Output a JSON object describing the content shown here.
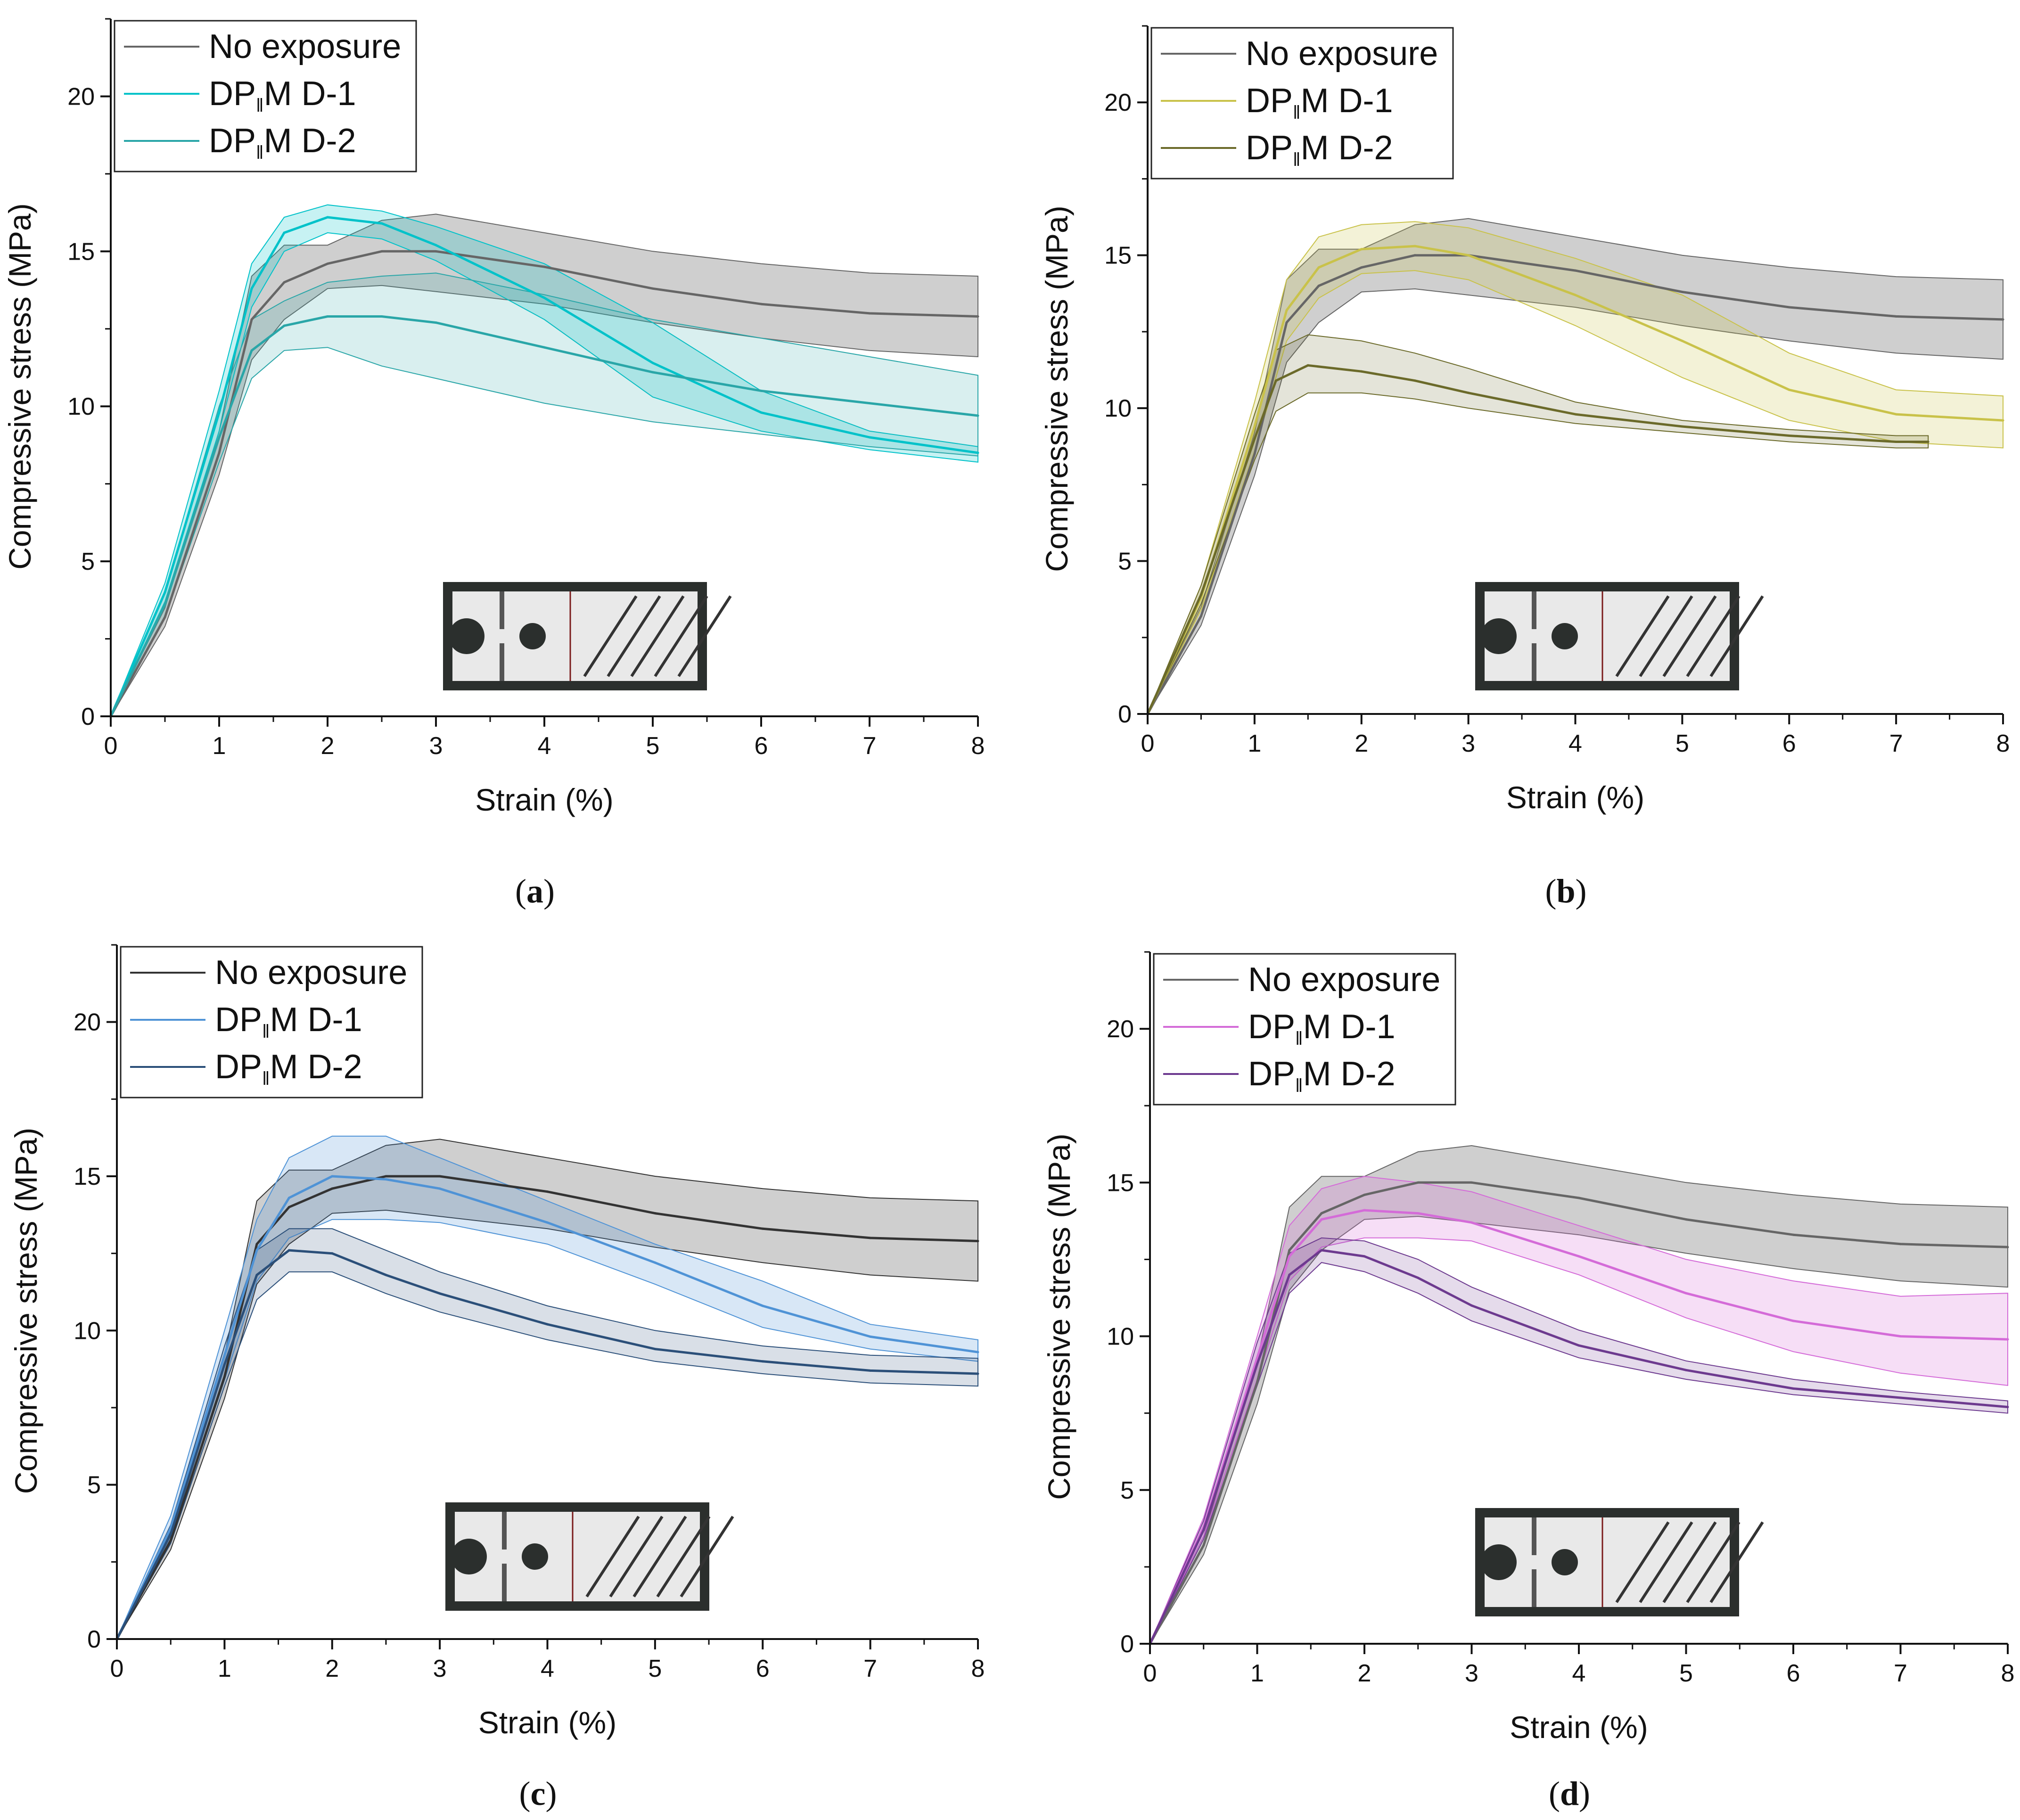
{
  "panels": [
    {
      "label": "a",
      "colors": [
        "#666666",
        "#00c2c9",
        "#2aa6a8"
      ]
    },
    {
      "label": "b",
      "colors": [
        "#666666",
        "#c9c24a",
        "#6b6a2a"
      ]
    },
    {
      "label": "c",
      "colors": [
        "#333333",
        "#4f93d6",
        "#2b4f79"
      ]
    },
    {
      "label": "d",
      "colors": [
        "#666666",
        "#d46bd8",
        "#6d3a8f"
      ]
    }
  ],
  "legend_parts": {
    "no_exposure": "No exposure",
    "dp": "DP",
    "sub": "‖",
    "m_d1": "M D-1",
    "m_d2": "M D-2"
  },
  "chart_data": [
    {
      "type": "line",
      "panel": "a",
      "xlabel": "Strain (%)",
      "ylabel": "Compressive stress (MPa)",
      "xlim": [
        0,
        8
      ],
      "ylim": [
        0,
        22.5
      ],
      "xticks": [
        0,
        1,
        2,
        3,
        4,
        5,
        6,
        7,
        8
      ],
      "yticks": [
        0,
        5,
        10,
        15,
        20
      ],
      "legend_position": "top-left",
      "series": [
        {
          "name": "No exposure",
          "x": [
            0,
            0.5,
            1.0,
            1.3,
            1.6,
            2.0,
            2.5,
            3.0,
            4.0,
            5.0,
            6.0,
            7.0,
            8.0
          ],
          "y": [
            0,
            3.2,
            8.5,
            12.8,
            14.0,
            14.6,
            15.0,
            15.0,
            14.5,
            13.8,
            13.3,
            13.0,
            12.9
          ],
          "band_upper": [
            0,
            3.5,
            9.2,
            14.2,
            15.2,
            15.2,
            16.0,
            16.2,
            15.6,
            15.0,
            14.6,
            14.3,
            14.2
          ],
          "band_lower": [
            0,
            2.9,
            7.8,
            11.5,
            12.8,
            13.8,
            13.9,
            13.7,
            13.3,
            12.7,
            12.2,
            11.8,
            11.6
          ]
        },
        {
          "name": "DP‖M D-1",
          "x": [
            0,
            0.5,
            1.0,
            1.3,
            1.6,
            2.0,
            2.5,
            3.0,
            4.0,
            5.0,
            6.0,
            7.0,
            8.0
          ],
          "y": [
            0,
            4.0,
            9.8,
            13.8,
            15.6,
            16.1,
            15.9,
            15.2,
            13.5,
            11.4,
            9.8,
            9.0,
            8.5
          ],
          "band_upper": [
            0,
            4.3,
            10.5,
            14.6,
            16.1,
            16.5,
            16.3,
            15.8,
            14.6,
            12.7,
            10.5,
            9.2,
            8.7
          ],
          "band_lower": [
            0,
            3.7,
            9.2,
            13.2,
            15.0,
            15.6,
            15.4,
            14.7,
            12.8,
            10.3,
            9.2,
            8.6,
            8.2
          ]
        },
        {
          "name": "DP‖M D-2",
          "x": [
            0,
            0.5,
            1.0,
            1.3,
            1.6,
            2.0,
            2.5,
            3.0,
            4.0,
            5.0,
            6.0,
            7.0,
            8.0
          ],
          "y": [
            0,
            3.6,
            9.0,
            11.8,
            12.6,
            12.9,
            12.9,
            12.7,
            11.9,
            11.1,
            10.5,
            10.1,
            9.7
          ],
          "band_upper": [
            0,
            4.0,
            10.0,
            12.8,
            13.4,
            14.0,
            14.2,
            14.3,
            13.6,
            12.8,
            12.2,
            11.6,
            11.0
          ],
          "band_lower": [
            0,
            3.2,
            8.2,
            10.9,
            11.8,
            11.9,
            11.3,
            10.9,
            10.1,
            9.5,
            9.1,
            8.7,
            8.4
          ]
        }
      ]
    },
    {
      "type": "line",
      "panel": "b",
      "xlabel": "Strain (%)",
      "ylabel": "Compressive stress (MPa)",
      "xlim": [
        0,
        8
      ],
      "ylim": [
        0,
        22.5
      ],
      "xticks": [
        0,
        1,
        2,
        3,
        4,
        5,
        6,
        7,
        8
      ],
      "yticks": [
        0,
        5,
        10,
        15,
        20
      ],
      "legend_position": "top-left",
      "series": [
        {
          "name": "No exposure",
          "x": [
            0,
            0.5,
            1.0,
            1.3,
            1.6,
            2.0,
            2.5,
            3.0,
            4.0,
            5.0,
            6.0,
            7.0,
            8.0
          ],
          "y": [
            0,
            3.2,
            8.5,
            12.8,
            14.0,
            14.6,
            15.0,
            15.0,
            14.5,
            13.8,
            13.3,
            13.0,
            12.9
          ],
          "band_upper": [
            0,
            3.5,
            9.2,
            14.2,
            15.2,
            15.2,
            16.0,
            16.2,
            15.6,
            15.0,
            14.6,
            14.3,
            14.2
          ],
          "band_lower": [
            0,
            2.9,
            7.8,
            11.5,
            12.8,
            13.8,
            13.9,
            13.7,
            13.3,
            12.7,
            12.2,
            11.8,
            11.6
          ]
        },
        {
          "name": "DP‖M D-1",
          "x": [
            0,
            0.5,
            1.0,
            1.3,
            1.6,
            2.0,
            2.5,
            3.0,
            4.0,
            5.0,
            6.0,
            7.0,
            8.0
          ],
          "y": [
            0,
            3.8,
            9.4,
            13.2,
            14.6,
            15.2,
            15.3,
            15.0,
            13.7,
            12.2,
            10.6,
            9.8,
            9.6
          ],
          "band_upper": [
            0,
            4.2,
            10.2,
            14.2,
            15.6,
            16.0,
            16.1,
            15.9,
            14.9,
            13.7,
            11.8,
            10.6,
            10.4
          ],
          "band_lower": [
            0,
            3.4,
            8.6,
            12.2,
            13.6,
            14.4,
            14.5,
            14.2,
            12.7,
            11.0,
            9.6,
            8.9,
            8.7
          ]
        },
        {
          "name": "DP‖M D-2",
          "x": [
            0,
            0.5,
            1.0,
            1.2,
            1.5,
            2.0,
            2.5,
            3.0,
            4.0,
            5.0,
            6.0,
            7.0,
            7.3
          ],
          "y": [
            0,
            3.9,
            9.0,
            10.9,
            11.4,
            11.2,
            10.9,
            10.5,
            9.8,
            9.4,
            9.1,
            8.9,
            8.9
          ],
          "band_upper": [
            0,
            4.2,
            9.8,
            11.9,
            12.4,
            12.2,
            11.8,
            11.3,
            10.2,
            9.6,
            9.3,
            9.1,
            9.1
          ],
          "band_lower": [
            0,
            3.6,
            8.3,
            9.9,
            10.5,
            10.5,
            10.3,
            10.0,
            9.5,
            9.2,
            8.9,
            8.7,
            8.7
          ]
        }
      ]
    },
    {
      "type": "line",
      "panel": "c",
      "xlabel": "Strain (%)",
      "ylabel": "Compressive stress (MPa)",
      "xlim": [
        0,
        8
      ],
      "ylim": [
        0,
        22.5
      ],
      "xticks": [
        0,
        1,
        2,
        3,
        4,
        5,
        6,
        7,
        8
      ],
      "yticks": [
        0,
        5,
        10,
        15,
        20
      ],
      "legend_position": "top-left",
      "series": [
        {
          "name": "No exposure",
          "x": [
            0,
            0.5,
            1.0,
            1.3,
            1.6,
            2.0,
            2.5,
            3.0,
            4.0,
            5.0,
            6.0,
            7.0,
            8.0
          ],
          "y": [
            0,
            3.2,
            8.5,
            12.8,
            14.0,
            14.6,
            15.0,
            15.0,
            14.5,
            13.8,
            13.3,
            13.0,
            12.9
          ],
          "band_upper": [
            0,
            3.5,
            9.2,
            14.2,
            15.2,
            15.2,
            16.0,
            16.2,
            15.6,
            15.0,
            14.6,
            14.3,
            14.2
          ],
          "band_lower": [
            0,
            2.9,
            7.8,
            11.5,
            12.8,
            13.8,
            13.9,
            13.7,
            13.3,
            12.7,
            12.2,
            11.8,
            11.6
          ]
        },
        {
          "name": "DP‖M D-1",
          "x": [
            0,
            0.5,
            1.0,
            1.3,
            1.6,
            2.0,
            2.5,
            3.0,
            4.0,
            5.0,
            6.0,
            7.0,
            8.0
          ],
          "y": [
            0,
            3.6,
            9.2,
            12.6,
            14.3,
            15.0,
            14.9,
            14.6,
            13.5,
            12.2,
            10.8,
            9.8,
            9.3
          ],
          "band_upper": [
            0,
            4.0,
            10.0,
            13.6,
            15.6,
            16.3,
            16.3,
            15.6,
            14.2,
            12.8,
            11.6,
            10.2,
            9.7
          ],
          "band_lower": [
            0,
            3.2,
            8.4,
            11.6,
            13.0,
            13.6,
            13.6,
            13.5,
            12.8,
            11.5,
            10.1,
            9.4,
            9.0
          ]
        },
        {
          "name": "DP‖M D-2",
          "x": [
            0,
            0.5,
            1.0,
            1.3,
            1.6,
            2.0,
            2.5,
            3.0,
            4.0,
            5.0,
            6.0,
            7.0,
            8.0
          ],
          "y": [
            0,
            3.4,
            8.9,
            11.8,
            12.6,
            12.5,
            11.8,
            11.2,
            10.2,
            9.4,
            9.0,
            8.7,
            8.6
          ],
          "band_upper": [
            0,
            3.7,
            9.5,
            12.6,
            13.3,
            13.3,
            12.6,
            11.9,
            10.8,
            10.0,
            9.5,
            9.2,
            9.1
          ],
          "band_lower": [
            0,
            3.1,
            8.2,
            11.0,
            11.9,
            11.9,
            11.2,
            10.6,
            9.7,
            9.0,
            8.6,
            8.3,
            8.2
          ]
        }
      ]
    },
    {
      "type": "line",
      "panel": "d",
      "xlabel": "Strain (%)",
      "ylabel": "Compressive stress (MPa)",
      "xlim": [
        0,
        8
      ],
      "ylim": [
        0,
        22.5
      ],
      "xticks": [
        0,
        1,
        2,
        3,
        4,
        5,
        6,
        7,
        8
      ],
      "yticks": [
        0,
        5,
        10,
        15,
        20
      ],
      "legend_position": "top-left",
      "series": [
        {
          "name": "No exposure",
          "x": [
            0,
            0.5,
            1.0,
            1.3,
            1.6,
            2.0,
            2.5,
            3.0,
            4.0,
            5.0,
            6.0,
            7.0,
            8.0
          ],
          "y": [
            0,
            3.2,
            8.5,
            12.8,
            14.0,
            14.6,
            15.0,
            15.0,
            14.5,
            13.8,
            13.3,
            13.0,
            12.9
          ],
          "band_upper": [
            0,
            3.5,
            9.2,
            14.2,
            15.2,
            15.2,
            16.0,
            16.2,
            15.6,
            15.0,
            14.6,
            14.3,
            14.2
          ],
          "band_lower": [
            0,
            2.9,
            7.8,
            11.5,
            12.8,
            13.8,
            13.9,
            13.7,
            13.3,
            12.7,
            12.2,
            11.8,
            11.6
          ]
        },
        {
          "name": "DP‖M D-1",
          "x": [
            0,
            0.5,
            1.0,
            1.3,
            1.6,
            2.0,
            2.5,
            3.0,
            4.0,
            5.0,
            6.0,
            7.0,
            8.0
          ],
          "y": [
            0,
            3.8,
            9.3,
            12.6,
            13.8,
            14.1,
            14.0,
            13.7,
            12.6,
            11.4,
            10.5,
            10.0,
            9.9
          ],
          "band_upper": [
            0,
            4.1,
            10.0,
            13.6,
            14.8,
            15.2,
            15.0,
            14.7,
            13.6,
            12.5,
            11.8,
            11.3,
            11.4
          ],
          "band_lower": [
            0,
            3.5,
            8.6,
            11.8,
            12.9,
            13.2,
            13.2,
            13.1,
            12.0,
            10.6,
            9.5,
            8.8,
            8.4
          ]
        },
        {
          "name": "DP‖M D-2",
          "x": [
            0,
            0.5,
            1.0,
            1.3,
            1.6,
            2.0,
            2.5,
            3.0,
            4.0,
            5.0,
            6.0,
            7.0,
            8.0
          ],
          "y": [
            0,
            3.7,
            9.1,
            12.0,
            12.8,
            12.6,
            11.9,
            11.0,
            9.7,
            8.9,
            8.3,
            8.0,
            7.7
          ],
          "band_upper": [
            0,
            4.0,
            9.8,
            12.7,
            13.2,
            13.1,
            12.5,
            11.6,
            10.2,
            9.2,
            8.6,
            8.2,
            7.9
          ],
          "band_lower": [
            0,
            3.4,
            8.4,
            11.4,
            12.4,
            12.1,
            11.4,
            10.5,
            9.3,
            8.6,
            8.1,
            7.8,
            7.5
          ]
        }
      ]
    }
  ]
}
